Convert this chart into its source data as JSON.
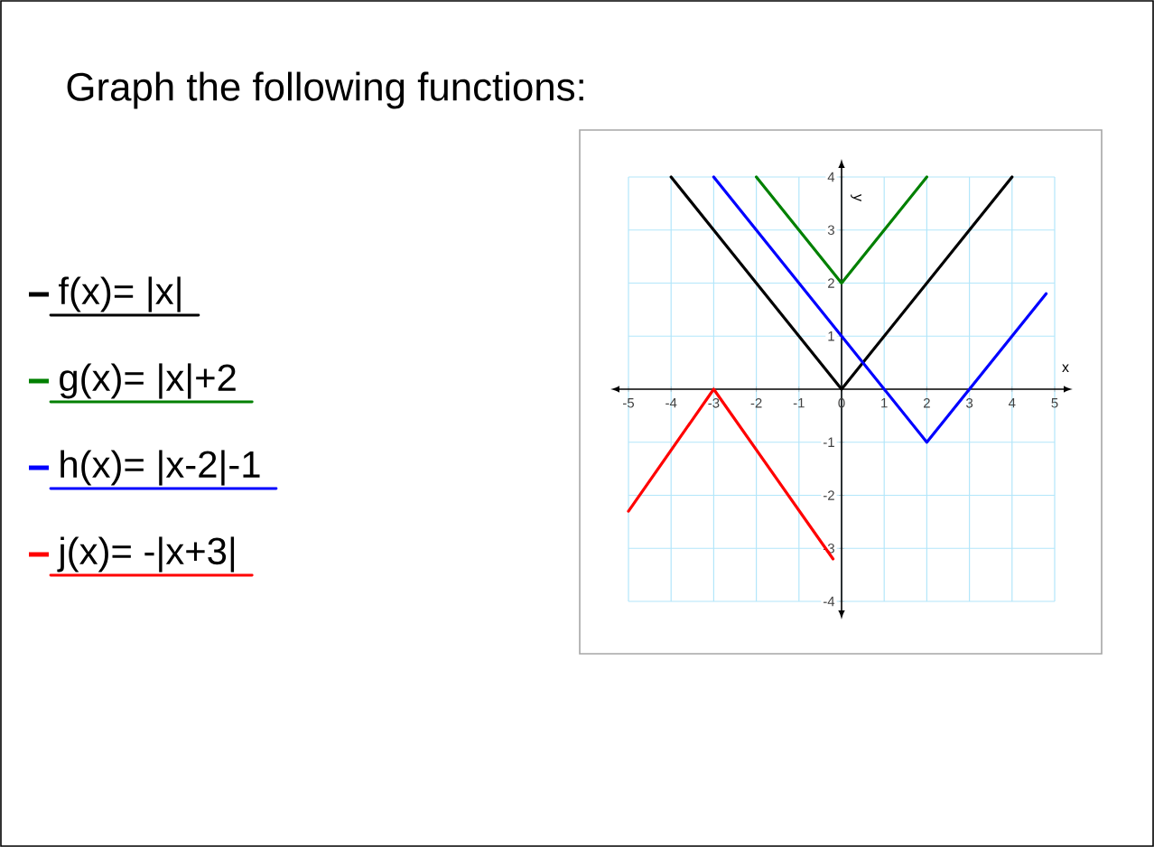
{
  "chart_data": {
    "type": "line",
    "title": "Graph the following functions:",
    "xlabel": "x",
    "ylabel": "y",
    "xlim": [
      -5,
      5
    ],
    "ylim": [
      -4,
      4
    ],
    "xticks": [
      -5,
      -4,
      -3,
      -2,
      -1,
      0,
      1,
      2,
      3,
      4,
      5
    ],
    "yticks": [
      -4,
      -3,
      -2,
      -1,
      1,
      2,
      3,
      4
    ],
    "grid": true,
    "legend": "left",
    "series": [
      {
        "name": "f(x)= |x|",
        "color": "#000000",
        "x": [
          -4,
          0,
          4
        ],
        "values": [
          4,
          0,
          4
        ]
      },
      {
        "name": "g(x)= |x|+2",
        "color": "#008000",
        "x": [
          -2,
          0,
          2
        ],
        "values": [
          4,
          2,
          4
        ]
      },
      {
        "name": "h(x)= |x-2|-1",
        "color": "#0000ff",
        "x": [
          -3,
          2,
          4.8
        ],
        "values": [
          4,
          -1,
          1.8
        ]
      },
      {
        "name": "j(x)= -|x+3|",
        "color": "#ff0000",
        "x": [
          -5,
          -3,
          -0.2
        ],
        "values": [
          -2.3,
          0,
          -3.2
        ]
      }
    ]
  }
}
